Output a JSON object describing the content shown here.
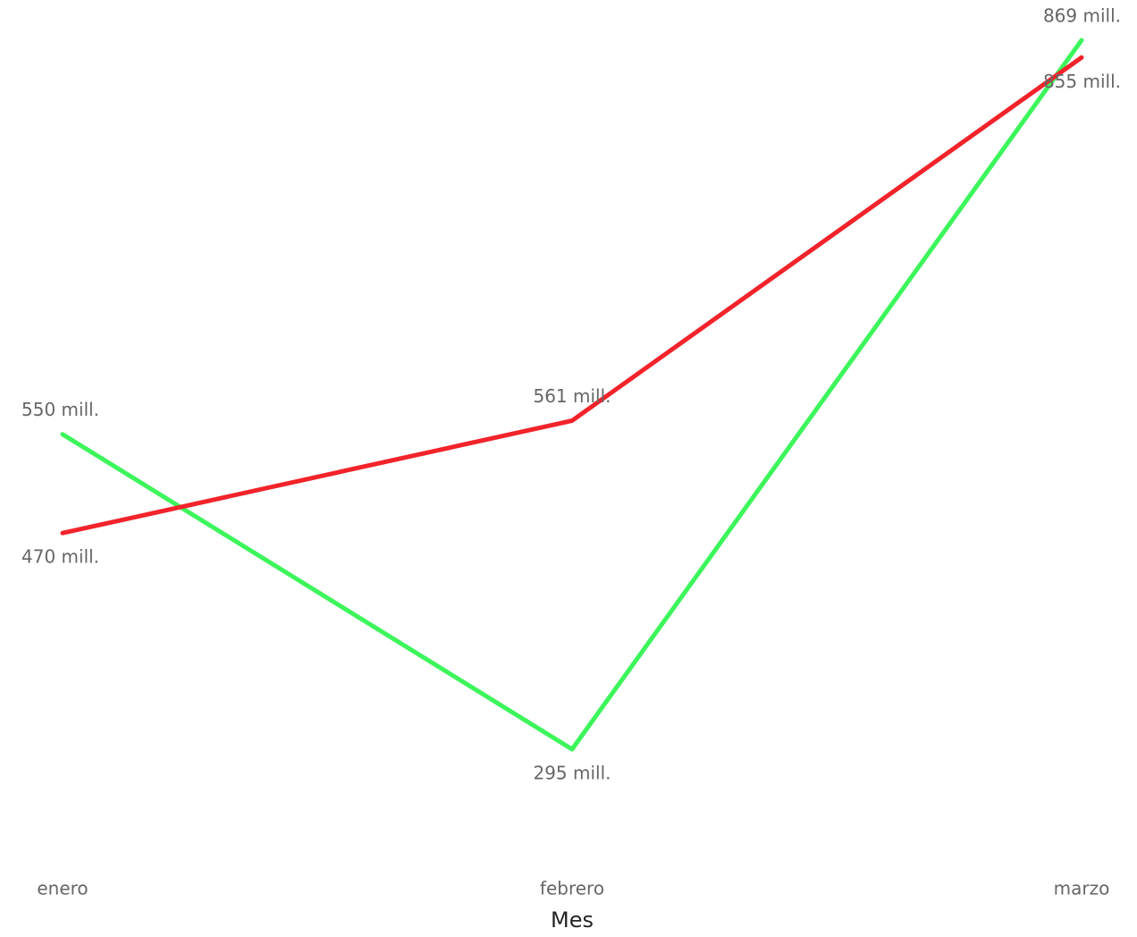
{
  "chart_data": {
    "type": "line",
    "x_label": "Mes",
    "categories": [
      "enero",
      "febrero",
      "marzo"
    ],
    "series": [
      {
        "color": "#3df55b",
        "values": [
          550,
          295,
          869
        ],
        "value_labels": [
          "550 mill.",
          "295 mill.",
          "869 mill."
        ]
      },
      {
        "color": "#f2232a",
        "values": [
          470,
          561,
          855
        ],
        "value_labels": [
          "470 mill.",
          "561 mill.",
          "855 mill."
        ]
      }
    ]
  }
}
